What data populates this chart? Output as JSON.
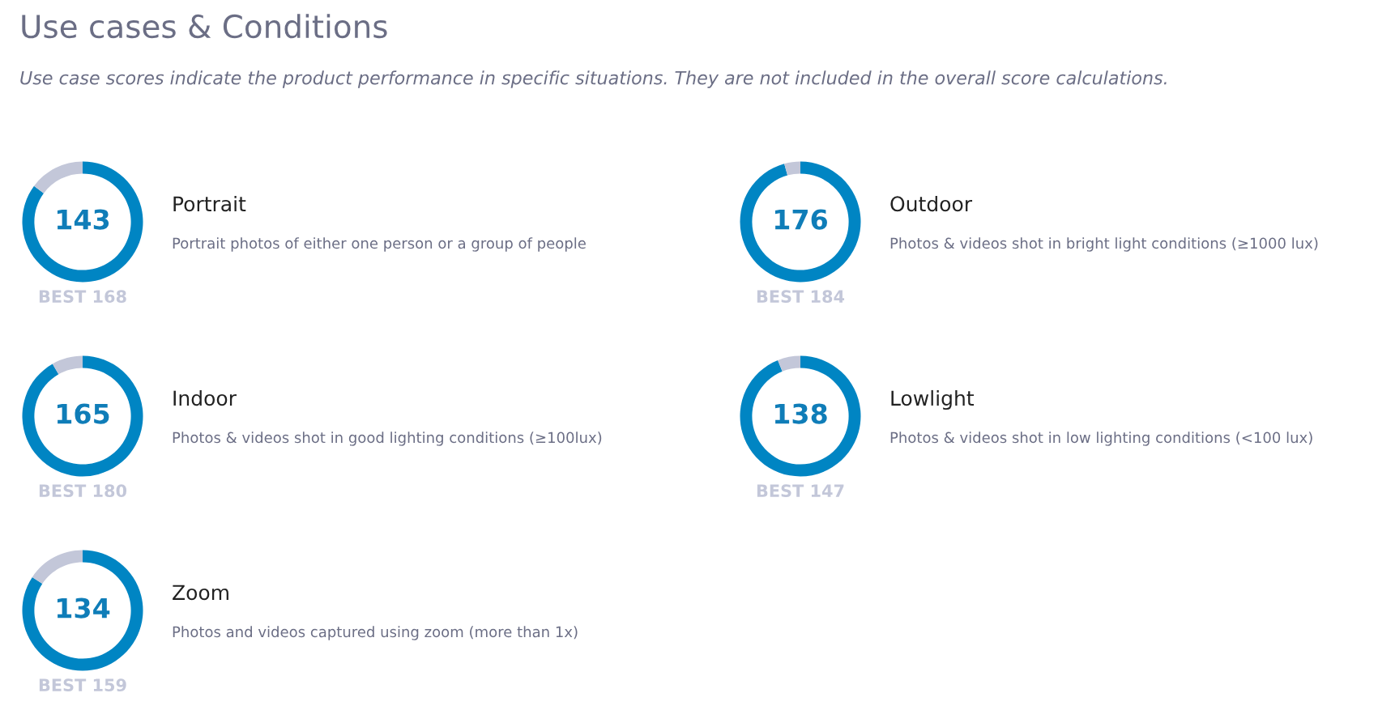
{
  "chart_data": [
    {
      "type": "other",
      "title": "Use cases & Conditions",
      "subtitle": "Use case scores indicate the product performance in specific situations. They are not included in the overall score calculations."
    },
    {
      "type": "donut",
      "title": "Portrait",
      "subtitle": "Portrait photos of either one person or a group of people",
      "categories": [
        null,
        null
      ],
      "values": [
        85.1,
        14.9
      ],
      "colors": [
        "#0085c3",
        "#c3c7d9"
      ],
      "annotations": [
        "143",
        "BEST 168"
      ]
    },
    {
      "type": "donut",
      "title": "Outdoor",
      "subtitle": "Photos & videos shot in bright light conditions (≥1000 lux)",
      "categories": [
        null,
        null
      ],
      "values": [
        95.7,
        4.3
      ],
      "colors": [
        "#0085c3",
        "#c3c7d9"
      ],
      "annotations": [
        "176",
        "BEST 184"
      ]
    },
    {
      "type": "donut",
      "title": "Indoor",
      "subtitle": "Photos & videos shot in good lighting conditions (≥100lux)",
      "categories": [
        null,
        null
      ],
      "values": [
        91.7,
        8.3
      ],
      "colors": [
        "#0085c3",
        "#c3c7d9"
      ],
      "annotations": [
        "165",
        "BEST 180"
      ]
    },
    {
      "type": "donut",
      "title": "Lowlight",
      "subtitle": "Photos & videos shot in low lighting conditions (<100 lux)",
      "categories": [
        null,
        null
      ],
      "values": [
        93.9,
        6.1
      ],
      "colors": [
        "#0085c3",
        "#c3c7d9"
      ],
      "annotations": [
        "138",
        "BEST 147"
      ]
    },
    {
      "type": "donut",
      "title": "Zoom",
      "subtitle": "Photos and videos captured using zoom (more than 1x)",
      "categories": [
        null,
        null
      ],
      "values": [
        84.3,
        15.7
      ],
      "colors": [
        "#0085c3",
        "#c3c7d9"
      ],
      "annotations": [
        "134",
        "BEST 159"
      ]
    }
  ]
}
